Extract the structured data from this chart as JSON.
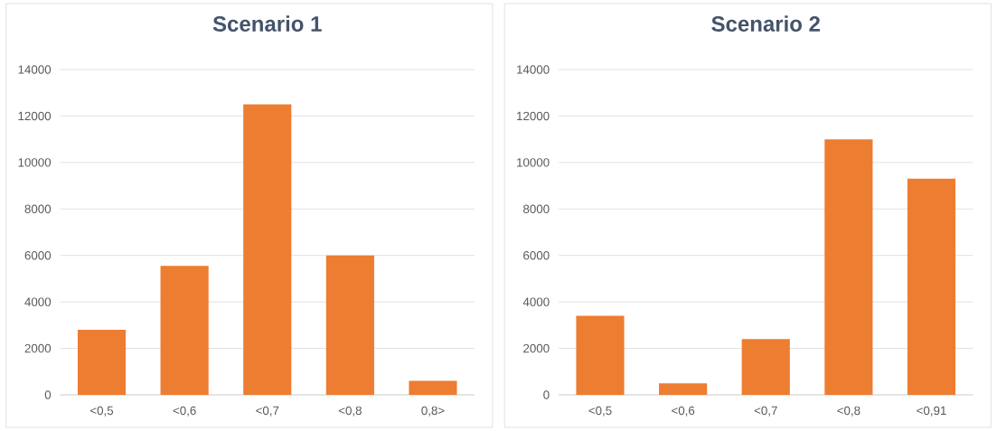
{
  "chart_data": [
    {
      "type": "bar",
      "title": "Scenario 1",
      "categories": [
        "<0,5",
        "<0,6",
        "<0,7",
        "<0,8",
        "0,8>"
      ],
      "values": [
        2800,
        5550,
        12500,
        6000,
        600
      ],
      "color": "#ed7d31",
      "ylim": [
        0,
        14000
      ],
      "yticks": [
        0,
        2000,
        4000,
        6000,
        8000,
        10000,
        12000,
        14000
      ],
      "grid": "y"
    },
    {
      "type": "bar",
      "title": "Scenario 2",
      "categories": [
        "<0,5",
        "<0,6",
        "<0,7",
        "<0,8",
        "<0,91"
      ],
      "values": [
        3400,
        500,
        2400,
        11000,
        9300
      ],
      "color": "#ed7d31",
      "ylim": [
        0,
        14000
      ],
      "yticks": [
        0,
        2000,
        4000,
        6000,
        8000,
        10000,
        12000,
        14000
      ],
      "grid": "y"
    }
  ]
}
